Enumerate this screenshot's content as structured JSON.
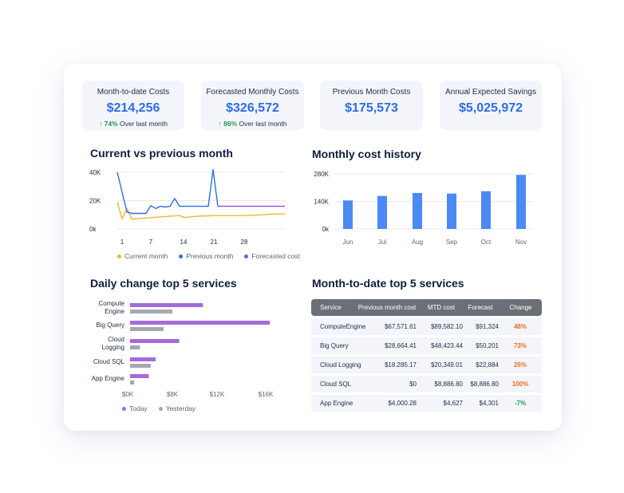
{
  "kpis": [
    {
      "title": "Month-to-date Costs",
      "value": "$214,256",
      "pct": "74%",
      "sub": "Over last month"
    },
    {
      "title": "Forecasted Monthly Costs",
      "value": "$326,572",
      "pct": "86%",
      "sub": "Over last month"
    },
    {
      "title": "Previous Month Costs",
      "value": "$175,573"
    },
    {
      "title": "Annual Expected Savings",
      "value": "$5,025,972"
    }
  ],
  "colors": {
    "accent": "#2d6de6",
    "current": "#f5b728",
    "previous": "#2d6de6",
    "forecast": "#8a4fdc",
    "today": "#a46bdc",
    "yesterday": "#a4a7b0",
    "bar": "#4b8af5",
    "up": "#1a9e4b",
    "bad": "#f26a1b"
  },
  "sections": {
    "current_vs_previous": "Current vs previous month",
    "monthly_history": "Monthly cost history",
    "daily_change": "Daily change top 5 services",
    "mtd_top5": "Month-to-date top 5 services"
  },
  "chart_data": [
    {
      "type": "line",
      "title": "Current vs previous month",
      "y_ticks": [
        "40K",
        "20K",
        "0k"
      ],
      "x_ticks": [
        "1",
        "7",
        "14",
        "21",
        "28"
      ],
      "ylim": [
        0,
        45000
      ],
      "series": [
        {
          "name": "Current month",
          "x": [
            1,
            2,
            3,
            4,
            5,
            6,
            7,
            8,
            9,
            10,
            11,
            12,
            13,
            14,
            15,
            16,
            17,
            18,
            19,
            20,
            21,
            22,
            23,
            24,
            25,
            26,
            27,
            28,
            29,
            30,
            31,
            32,
            33,
            34,
            35,
            36
          ],
          "values": [
            19000,
            7000,
            14500,
            7000,
            7200,
            7500,
            7800,
            8000,
            8300,
            8500,
            8800,
            9000,
            9200,
            9500,
            8000,
            8500,
            8800,
            9000,
            9200,
            9300,
            9400,
            9400,
            9400,
            9400,
            9400,
            9400,
            9400,
            9400,
            9600,
            9800,
            10000,
            10200,
            10400,
            10600,
            10600,
            10600
          ]
        },
        {
          "name": "Previous month",
          "x": [
            1,
            3,
            4,
            5,
            6,
            7,
            8,
            9,
            10,
            11,
            12,
            13,
            14,
            15,
            16,
            17,
            18,
            19,
            20,
            21,
            22
          ],
          "values": [
            40000,
            12000,
            11000,
            11000,
            11000,
            11000,
            16500,
            14500,
            16000,
            15500,
            16000,
            21500,
            16000,
            16000,
            16000,
            16000,
            16000,
            16000,
            16000,
            42000,
            16000
          ]
        },
        {
          "name": "Forecasted cost",
          "x": [
            22,
            36
          ],
          "values": [
            16000,
            16000
          ]
        }
      ]
    },
    {
      "type": "bar",
      "title": "Monthly cost history",
      "categories": [
        "Jun",
        "Jul",
        "Aug",
        "Sep",
        "Oct",
        "Nov"
      ],
      "values": [
        145000,
        168000,
        183000,
        180000,
        192000,
        275000
      ],
      "y_ticks": [
        "280K",
        "140K",
        "0k"
      ],
      "ylim": [
        0,
        280000
      ]
    },
    {
      "type": "bar",
      "title": "Daily change top 5 services",
      "categories": [
        "Compute Engine",
        "Big Query",
        "Cloud Logging",
        "Cloud SQL",
        "App Engine"
      ],
      "series": [
        {
          "name": "Today",
          "values": [
            7400,
            14200,
            5000,
            2600,
            1900
          ]
        },
        {
          "name": "Yesterday",
          "values": [
            4300,
            3400,
            1000,
            2100,
            400
          ]
        }
      ],
      "x_ticks": [
        "$0K",
        "$8K",
        "$12K",
        "$16K"
      ],
      "xlim": [
        0,
        15000
      ]
    }
  ],
  "table": {
    "headers": [
      "Service",
      "Previous month cost",
      "MTD cost",
      "Forecast",
      "Change"
    ],
    "rows": [
      [
        "ComputeEngine",
        "$67,571.61",
        "$89,582.10",
        "$91,324",
        "48%"
      ],
      [
        "Big Query",
        "$28,664.41",
        "$48,423.44",
        "$50,201",
        "73%"
      ],
      [
        "Cloud Logging",
        "$18.285.17",
        "$20,349.01",
        "$22,884",
        "26%"
      ],
      [
        "Cloud SQL",
        "$0",
        "$8,886.80",
        "$8,886.80",
        "100%"
      ],
      [
        "App Engine",
        "$4,000.28",
        "$4,627",
        "$4,301",
        "-7%"
      ]
    ]
  }
}
